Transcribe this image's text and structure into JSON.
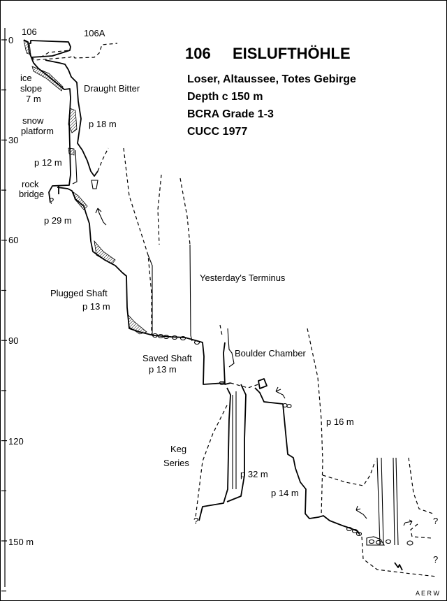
{
  "title": {
    "number": "106",
    "name": "EISLUFTHÖHLE"
  },
  "subtitle_lines": [
    "Loser, Altaussee, Totes Gebirge",
    "Depth c 150 m",
    "BCRA Grade 1-3",
    "CUCC 1977"
  ],
  "depth_axis": {
    "ticks": [
      "0",
      "30",
      "60",
      "90",
      "120",
      "150 m"
    ],
    "unit": "m",
    "major_step": 30,
    "minor_step": 15
  },
  "labels": {
    "entrance_106": "106",
    "entrance_106a": "106A",
    "ice_slope": [
      "ice",
      "slope",
      "7 m"
    ],
    "draught_bitter": "Draught Bitter",
    "snow_platform": [
      "snow",
      "platform"
    ],
    "p18": "p 18 m",
    "p12": "p 12 m",
    "rock_bridge": [
      "rock",
      "bridge"
    ],
    "p29": "p 29 m",
    "yesterdays_terminus": "Yesterday's Terminus",
    "plugged_shaft": [
      "Plugged Shaft",
      "p 13 m"
    ],
    "saved_shaft": [
      "Saved Shaft",
      "p 13 m"
    ],
    "boulder_chamber": "Boulder Chamber",
    "p16": "p 16 m",
    "keg_series": [
      "Keg",
      "Series"
    ],
    "p32": "p 32 m",
    "p14": "p 14 m",
    "question_marks": [
      "?",
      "?",
      "?",
      "?"
    ]
  },
  "credit": "A E R W"
}
